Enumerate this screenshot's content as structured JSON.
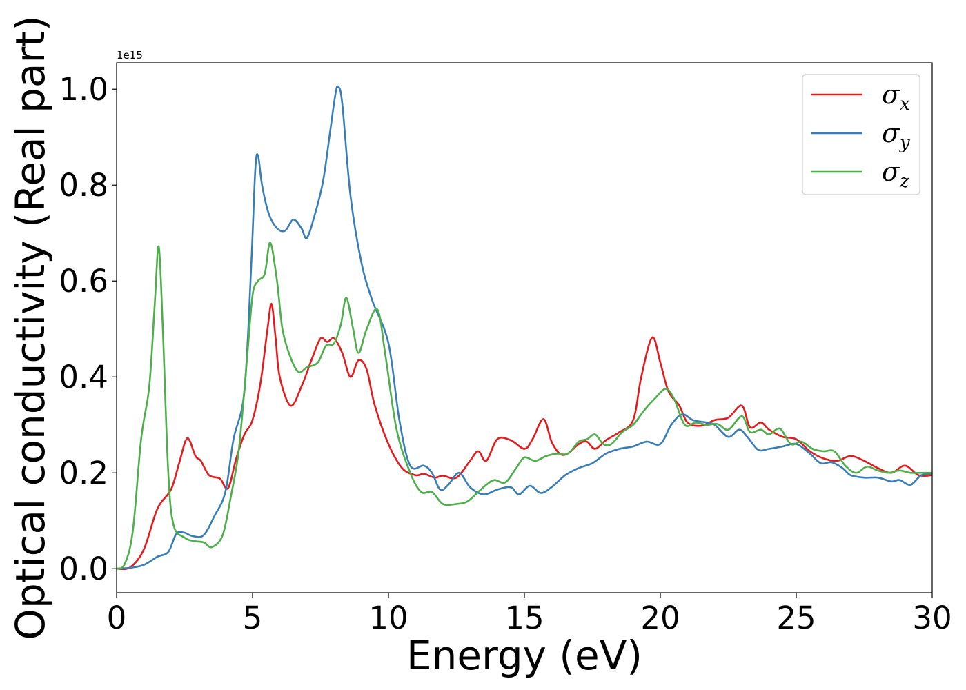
{
  "chart_data": {
    "type": "line",
    "xlabel": "Energy (eV)",
    "ylabel": "Optical conductivity (Real part)",
    "y_offset_label": "1e15",
    "xlim": [
      0,
      30
    ],
    "ylim": [
      -0.05,
      1.055
    ],
    "xticks": [
      0,
      5,
      10,
      15,
      20,
      25,
      30
    ],
    "yticks": [
      0.0,
      0.2,
      0.4,
      0.6,
      0.8,
      1.0
    ],
    "ytick_labels": [
      "0.0",
      "0.2",
      "0.4",
      "0.6",
      "0.8",
      "1.0"
    ],
    "grid": false,
    "legend_position": "top-right",
    "series": [
      {
        "name": "σx",
        "symbol": "σ",
        "sub": "x",
        "color": "#e41a1c",
        "points": [
          [
            0,
            0
          ],
          [
            0.5,
            0.003
          ],
          [
            1.0,
            0.04
          ],
          [
            1.5,
            0.125
          ],
          [
            2.0,
            0.165
          ],
          [
            2.3,
            0.22
          ],
          [
            2.6,
            0.272
          ],
          [
            2.9,
            0.235
          ],
          [
            3.1,
            0.225
          ],
          [
            3.4,
            0.195
          ],
          [
            3.8,
            0.188
          ],
          [
            4.1,
            0.168
          ],
          [
            4.4,
            0.23
          ],
          [
            4.7,
            0.28
          ],
          [
            5.0,
            0.31
          ],
          [
            5.3,
            0.39
          ],
          [
            5.55,
            0.5
          ],
          [
            5.7,
            0.552
          ],
          [
            5.85,
            0.48
          ],
          [
            6.0,
            0.4
          ],
          [
            6.4,
            0.34
          ],
          [
            6.8,
            0.38
          ],
          [
            7.2,
            0.44
          ],
          [
            7.5,
            0.48
          ],
          [
            7.75,
            0.473
          ],
          [
            8.0,
            0.48
          ],
          [
            8.3,
            0.45
          ],
          [
            8.6,
            0.4
          ],
          [
            8.9,
            0.435
          ],
          [
            9.2,
            0.415
          ],
          [
            9.5,
            0.34
          ],
          [
            10.0,
            0.26
          ],
          [
            10.5,
            0.21
          ],
          [
            11.0,
            0.195
          ],
          [
            11.3,
            0.198
          ],
          [
            11.7,
            0.19
          ],
          [
            12.0,
            0.194
          ],
          [
            12.5,
            0.19
          ],
          [
            13.0,
            0.225
          ],
          [
            13.3,
            0.245
          ],
          [
            13.6,
            0.225
          ],
          [
            14.0,
            0.27
          ],
          [
            14.5,
            0.268
          ],
          [
            15.0,
            0.25
          ],
          [
            15.3,
            0.27
          ],
          [
            15.7,
            0.312
          ],
          [
            16.0,
            0.265
          ],
          [
            16.3,
            0.24
          ],
          [
            16.6,
            0.24
          ],
          [
            17.0,
            0.26
          ],
          [
            17.3,
            0.265
          ],
          [
            17.6,
            0.25
          ],
          [
            18.0,
            0.268
          ],
          [
            18.5,
            0.285
          ],
          [
            19.0,
            0.31
          ],
          [
            19.3,
            0.4
          ],
          [
            19.7,
            0.482
          ],
          [
            20.0,
            0.43
          ],
          [
            20.3,
            0.37
          ],
          [
            20.7,
            0.34
          ],
          [
            21.0,
            0.305
          ],
          [
            21.5,
            0.298
          ],
          [
            22.0,
            0.31
          ],
          [
            22.5,
            0.315
          ],
          [
            23.0,
            0.34
          ],
          [
            23.3,
            0.295
          ],
          [
            23.7,
            0.305
          ],
          [
            24.0,
            0.29
          ],
          [
            24.5,
            0.275
          ],
          [
            25.0,
            0.27
          ],
          [
            25.5,
            0.245
          ],
          [
            26.0,
            0.23
          ],
          [
            26.5,
            0.225
          ],
          [
            27.0,
            0.235
          ],
          [
            27.5,
            0.225
          ],
          [
            28.0,
            0.21
          ],
          [
            28.5,
            0.2
          ],
          [
            29.0,
            0.215
          ],
          [
            29.5,
            0.195
          ],
          [
            30.0,
            0.195
          ]
        ]
      },
      {
        "name": "σy",
        "symbol": "σ",
        "sub": "y",
        "color": "#377eb8",
        "points": [
          [
            0,
            0
          ],
          [
            0.5,
            0.002
          ],
          [
            1.0,
            0.008
          ],
          [
            1.5,
            0.025
          ],
          [
            1.9,
            0.035
          ],
          [
            2.2,
            0.073
          ],
          [
            2.5,
            0.075
          ],
          [
            2.8,
            0.068
          ],
          [
            3.2,
            0.07
          ],
          [
            3.6,
            0.11
          ],
          [
            4.0,
            0.16
          ],
          [
            4.3,
            0.27
          ],
          [
            4.7,
            0.37
          ],
          [
            4.95,
            0.63
          ],
          [
            5.1,
            0.83
          ],
          [
            5.2,
            0.862
          ],
          [
            5.35,
            0.8
          ],
          [
            5.6,
            0.74
          ],
          [
            5.9,
            0.71
          ],
          [
            6.2,
            0.705
          ],
          [
            6.5,
            0.728
          ],
          [
            6.8,
            0.71
          ],
          [
            7.0,
            0.69
          ],
          [
            7.3,
            0.74
          ],
          [
            7.6,
            0.81
          ],
          [
            7.85,
            0.91
          ],
          [
            8.05,
            0.99
          ],
          [
            8.15,
            1.005
          ],
          [
            8.3,
            0.97
          ],
          [
            8.6,
            0.78
          ],
          [
            9.0,
            0.64
          ],
          [
            9.4,
            0.56
          ],
          [
            10.0,
            0.47
          ],
          [
            10.4,
            0.31
          ],
          [
            10.8,
            0.215
          ],
          [
            11.3,
            0.215
          ],
          [
            11.6,
            0.2
          ],
          [
            11.9,
            0.165
          ],
          [
            12.2,
            0.175
          ],
          [
            12.6,
            0.2
          ],
          [
            13.0,
            0.17
          ],
          [
            13.5,
            0.155
          ],
          [
            14.0,
            0.165
          ],
          [
            14.5,
            0.17
          ],
          [
            14.8,
            0.155
          ],
          [
            15.2,
            0.173
          ],
          [
            15.6,
            0.158
          ],
          [
            16.0,
            0.17
          ],
          [
            16.5,
            0.195
          ],
          [
            17.0,
            0.21
          ],
          [
            17.5,
            0.22
          ],
          [
            18.0,
            0.24
          ],
          [
            18.5,
            0.25
          ],
          [
            19.0,
            0.255
          ],
          [
            19.5,
            0.265
          ],
          [
            20.0,
            0.26
          ],
          [
            20.4,
            0.3
          ],
          [
            20.8,
            0.322
          ],
          [
            21.2,
            0.31
          ],
          [
            21.7,
            0.305
          ],
          [
            22.0,
            0.3
          ],
          [
            22.5,
            0.275
          ],
          [
            22.9,
            0.29
          ],
          [
            23.2,
            0.275
          ],
          [
            23.6,
            0.248
          ],
          [
            24.0,
            0.25
          ],
          [
            24.5,
            0.255
          ],
          [
            25.0,
            0.26
          ],
          [
            25.5,
            0.24
          ],
          [
            25.9,
            0.22
          ],
          [
            26.3,
            0.222
          ],
          [
            26.7,
            0.21
          ],
          [
            27.0,
            0.195
          ],
          [
            27.5,
            0.19
          ],
          [
            28.0,
            0.19
          ],
          [
            28.5,
            0.182
          ],
          [
            28.8,
            0.185
          ],
          [
            29.2,
            0.175
          ],
          [
            29.6,
            0.195
          ],
          [
            30.0,
            0.198
          ]
        ]
      },
      {
        "name": "σz",
        "symbol": "σ",
        "sub": "z",
        "color": "#4daf4a",
        "points": [
          [
            0,
            0
          ],
          [
            0.3,
            0.01
          ],
          [
            0.6,
            0.08
          ],
          [
            0.9,
            0.27
          ],
          [
            1.2,
            0.38
          ],
          [
            1.4,
            0.55
          ],
          [
            1.55,
            0.672
          ],
          [
            1.7,
            0.5
          ],
          [
            1.9,
            0.2
          ],
          [
            2.1,
            0.09
          ],
          [
            2.5,
            0.065
          ],
          [
            2.8,
            0.058
          ],
          [
            3.2,
            0.055
          ],
          [
            3.5,
            0.045
          ],
          [
            3.9,
            0.07
          ],
          [
            4.2,
            0.15
          ],
          [
            4.5,
            0.25
          ],
          [
            4.8,
            0.44
          ],
          [
            5.0,
            0.57
          ],
          [
            5.2,
            0.6
          ],
          [
            5.45,
            0.615
          ],
          [
            5.65,
            0.68
          ],
          [
            5.9,
            0.6
          ],
          [
            6.1,
            0.5
          ],
          [
            6.4,
            0.44
          ],
          [
            6.7,
            0.41
          ],
          [
            7.0,
            0.42
          ],
          [
            7.4,
            0.43
          ],
          [
            7.7,
            0.465
          ],
          [
            8.0,
            0.47
          ],
          [
            8.25,
            0.51
          ],
          [
            8.45,
            0.565
          ],
          [
            8.7,
            0.5
          ],
          [
            8.9,
            0.45
          ],
          [
            9.2,
            0.5
          ],
          [
            9.6,
            0.54
          ],
          [
            9.9,
            0.44
          ],
          [
            10.3,
            0.29
          ],
          [
            10.8,
            0.2
          ],
          [
            11.2,
            0.16
          ],
          [
            11.6,
            0.16
          ],
          [
            12.0,
            0.135
          ],
          [
            12.5,
            0.135
          ],
          [
            12.9,
            0.14
          ],
          [
            13.3,
            0.16
          ],
          [
            13.6,
            0.175
          ],
          [
            13.9,
            0.185
          ],
          [
            14.3,
            0.18
          ],
          [
            14.7,
            0.21
          ],
          [
            15.0,
            0.232
          ],
          [
            15.4,
            0.225
          ],
          [
            15.8,
            0.235
          ],
          [
            16.2,
            0.24
          ],
          [
            16.6,
            0.24
          ],
          [
            17.0,
            0.265
          ],
          [
            17.3,
            0.27
          ],
          [
            17.6,
            0.28
          ],
          [
            17.9,
            0.26
          ],
          [
            18.2,
            0.26
          ],
          [
            18.6,
            0.285
          ],
          [
            19.0,
            0.3
          ],
          [
            19.4,
            0.33
          ],
          [
            19.8,
            0.355
          ],
          [
            20.2,
            0.375
          ],
          [
            20.5,
            0.355
          ],
          [
            20.9,
            0.3
          ],
          [
            21.3,
            0.305
          ],
          [
            21.7,
            0.3
          ],
          [
            22.1,
            0.302
          ],
          [
            22.5,
            0.29
          ],
          [
            23.0,
            0.318
          ],
          [
            23.3,
            0.285
          ],
          [
            23.7,
            0.29
          ],
          [
            24.0,
            0.28
          ],
          [
            24.4,
            0.292
          ],
          [
            24.8,
            0.26
          ],
          [
            25.2,
            0.265
          ],
          [
            25.6,
            0.25
          ],
          [
            26.0,
            0.245
          ],
          [
            26.4,
            0.245
          ],
          [
            26.8,
            0.215
          ],
          [
            27.2,
            0.2
          ],
          [
            27.6,
            0.213
          ],
          [
            28.0,
            0.205
          ],
          [
            28.4,
            0.2
          ],
          [
            28.8,
            0.205
          ],
          [
            29.2,
            0.2
          ],
          [
            29.6,
            0.2
          ],
          [
            30.0,
            0.2
          ]
        ]
      }
    ]
  }
}
